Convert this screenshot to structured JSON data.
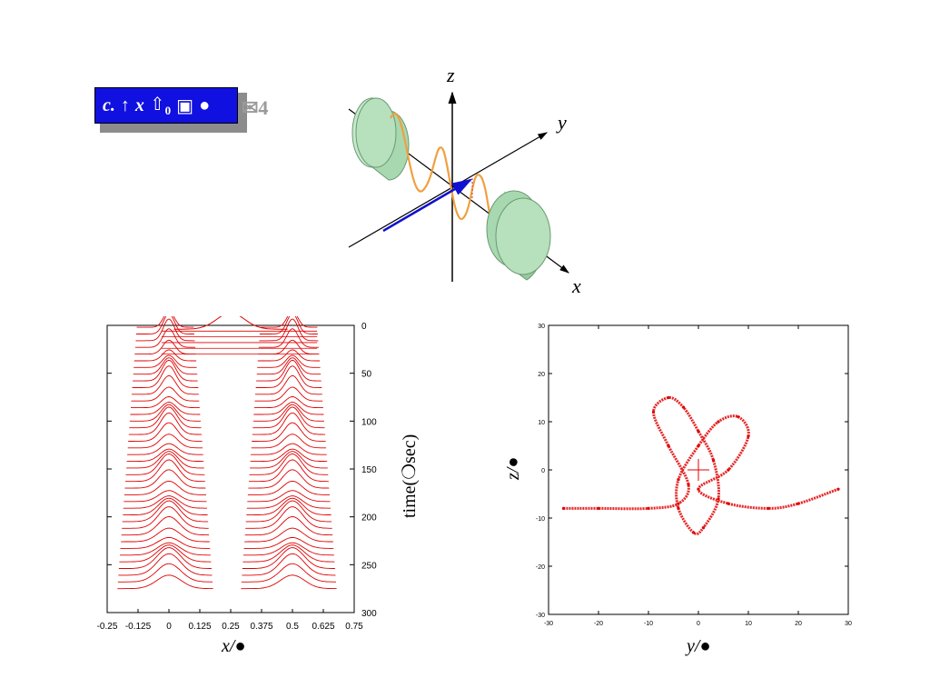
{
  "panel_label": {
    "letter": "c.",
    "arrow_symbol": "↑",
    "var": "x",
    "arrow2_symbol": "⇧",
    "subscript": "0",
    "box_symbol": "▣",
    "dot_symbol": "●"
  },
  "overlay_glyph": "✉4",
  "diagram": {
    "z_label": "z",
    "y_label": "y",
    "x_label": "x",
    "colors": {
      "magnet": "#a8d8b0",
      "wave": "#f0a040",
      "vector": "#1010d0"
    }
  },
  "left_plot": {
    "ylabel": "time(❍sec)",
    "xlabel_var": "x/",
    "xlabel_unit": "●",
    "x_ticks": [
      "-0.25",
      "-0.125",
      "0",
      "0.125",
      "0.25",
      "0.375",
      "0.5",
      "0.625",
      "0.75"
    ],
    "y_ticks": [
      "0",
      "50",
      "100",
      "150",
      "200",
      "250",
      "300"
    ]
  },
  "right_plot": {
    "xlabel_var": "y/",
    "xlabel_unit": "●",
    "ylabel_var": "z/",
    "ylabel_unit": "●",
    "x_ticks": [
      "-30",
      "-20",
      "-10",
      "0",
      "10",
      "20",
      "30"
    ],
    "y_ticks": [
      "30",
      "20",
      "10",
      "0",
      "-10",
      "-20",
      "-30"
    ]
  },
  "chart_data": [
    {
      "type": "line",
      "xlim": [
        -0.25,
        0.75
      ],
      "ylim": [
        0,
        300
      ],
      "y_axis_side": "right",
      "y_inverted": true,
      "series": [
        {
          "values": [
            [
              0.0,
              0
            ],
            [
              0.5,
              0
            ],
            [
              0.0,
              20
            ],
            [
              0.5,
              20
            ],
            [
              0.0,
              50
            ],
            [
              0.5,
              50
            ],
            [
              0.0,
              100
            ],
            [
              0.5,
              100
            ],
            [
              0.0,
              150
            ],
            [
              0.5,
              150
            ],
            [
              0.0,
              200
            ],
            [
              0.5,
              200
            ],
            [
              0.0,
              250
            ],
            [
              0.5,
              250
            ],
            [
              0.0,
              275
            ],
            [
              0.5,
              275
            ]
          ]
        }
      ],
      "color": "#e00000"
    },
    {
      "type": "line",
      "xlim": [
        -30,
        30
      ],
      "ylim": [
        -30,
        30
      ],
      "grid": false,
      "color": "#e00000",
      "series": [
        {
          "values": [
            [
              -27,
              -8
            ],
            [
              -20,
              -8
            ],
            [
              -10,
              -8
            ],
            [
              -4,
              -7
            ],
            [
              -2,
              -3
            ],
            [
              -6,
              5
            ],
            [
              -9,
              12
            ],
            [
              -6,
              15
            ],
            [
              -3,
              13
            ],
            [
              0,
              8
            ],
            [
              3,
              2
            ],
            [
              4,
              -6
            ],
            [
              1,
              -12
            ],
            [
              -1,
              -13
            ],
            [
              -4,
              -8
            ],
            [
              -4,
              -2
            ],
            [
              0,
              5
            ],
            [
              4,
              10
            ],
            [
              8,
              11
            ],
            [
              10,
              7
            ],
            [
              6,
              0
            ],
            [
              0,
              -4
            ],
            [
              6,
              -7
            ],
            [
              14,
              -8
            ],
            [
              20,
              -7
            ],
            [
              28,
              -4
            ]
          ]
        }
      ]
    }
  ]
}
